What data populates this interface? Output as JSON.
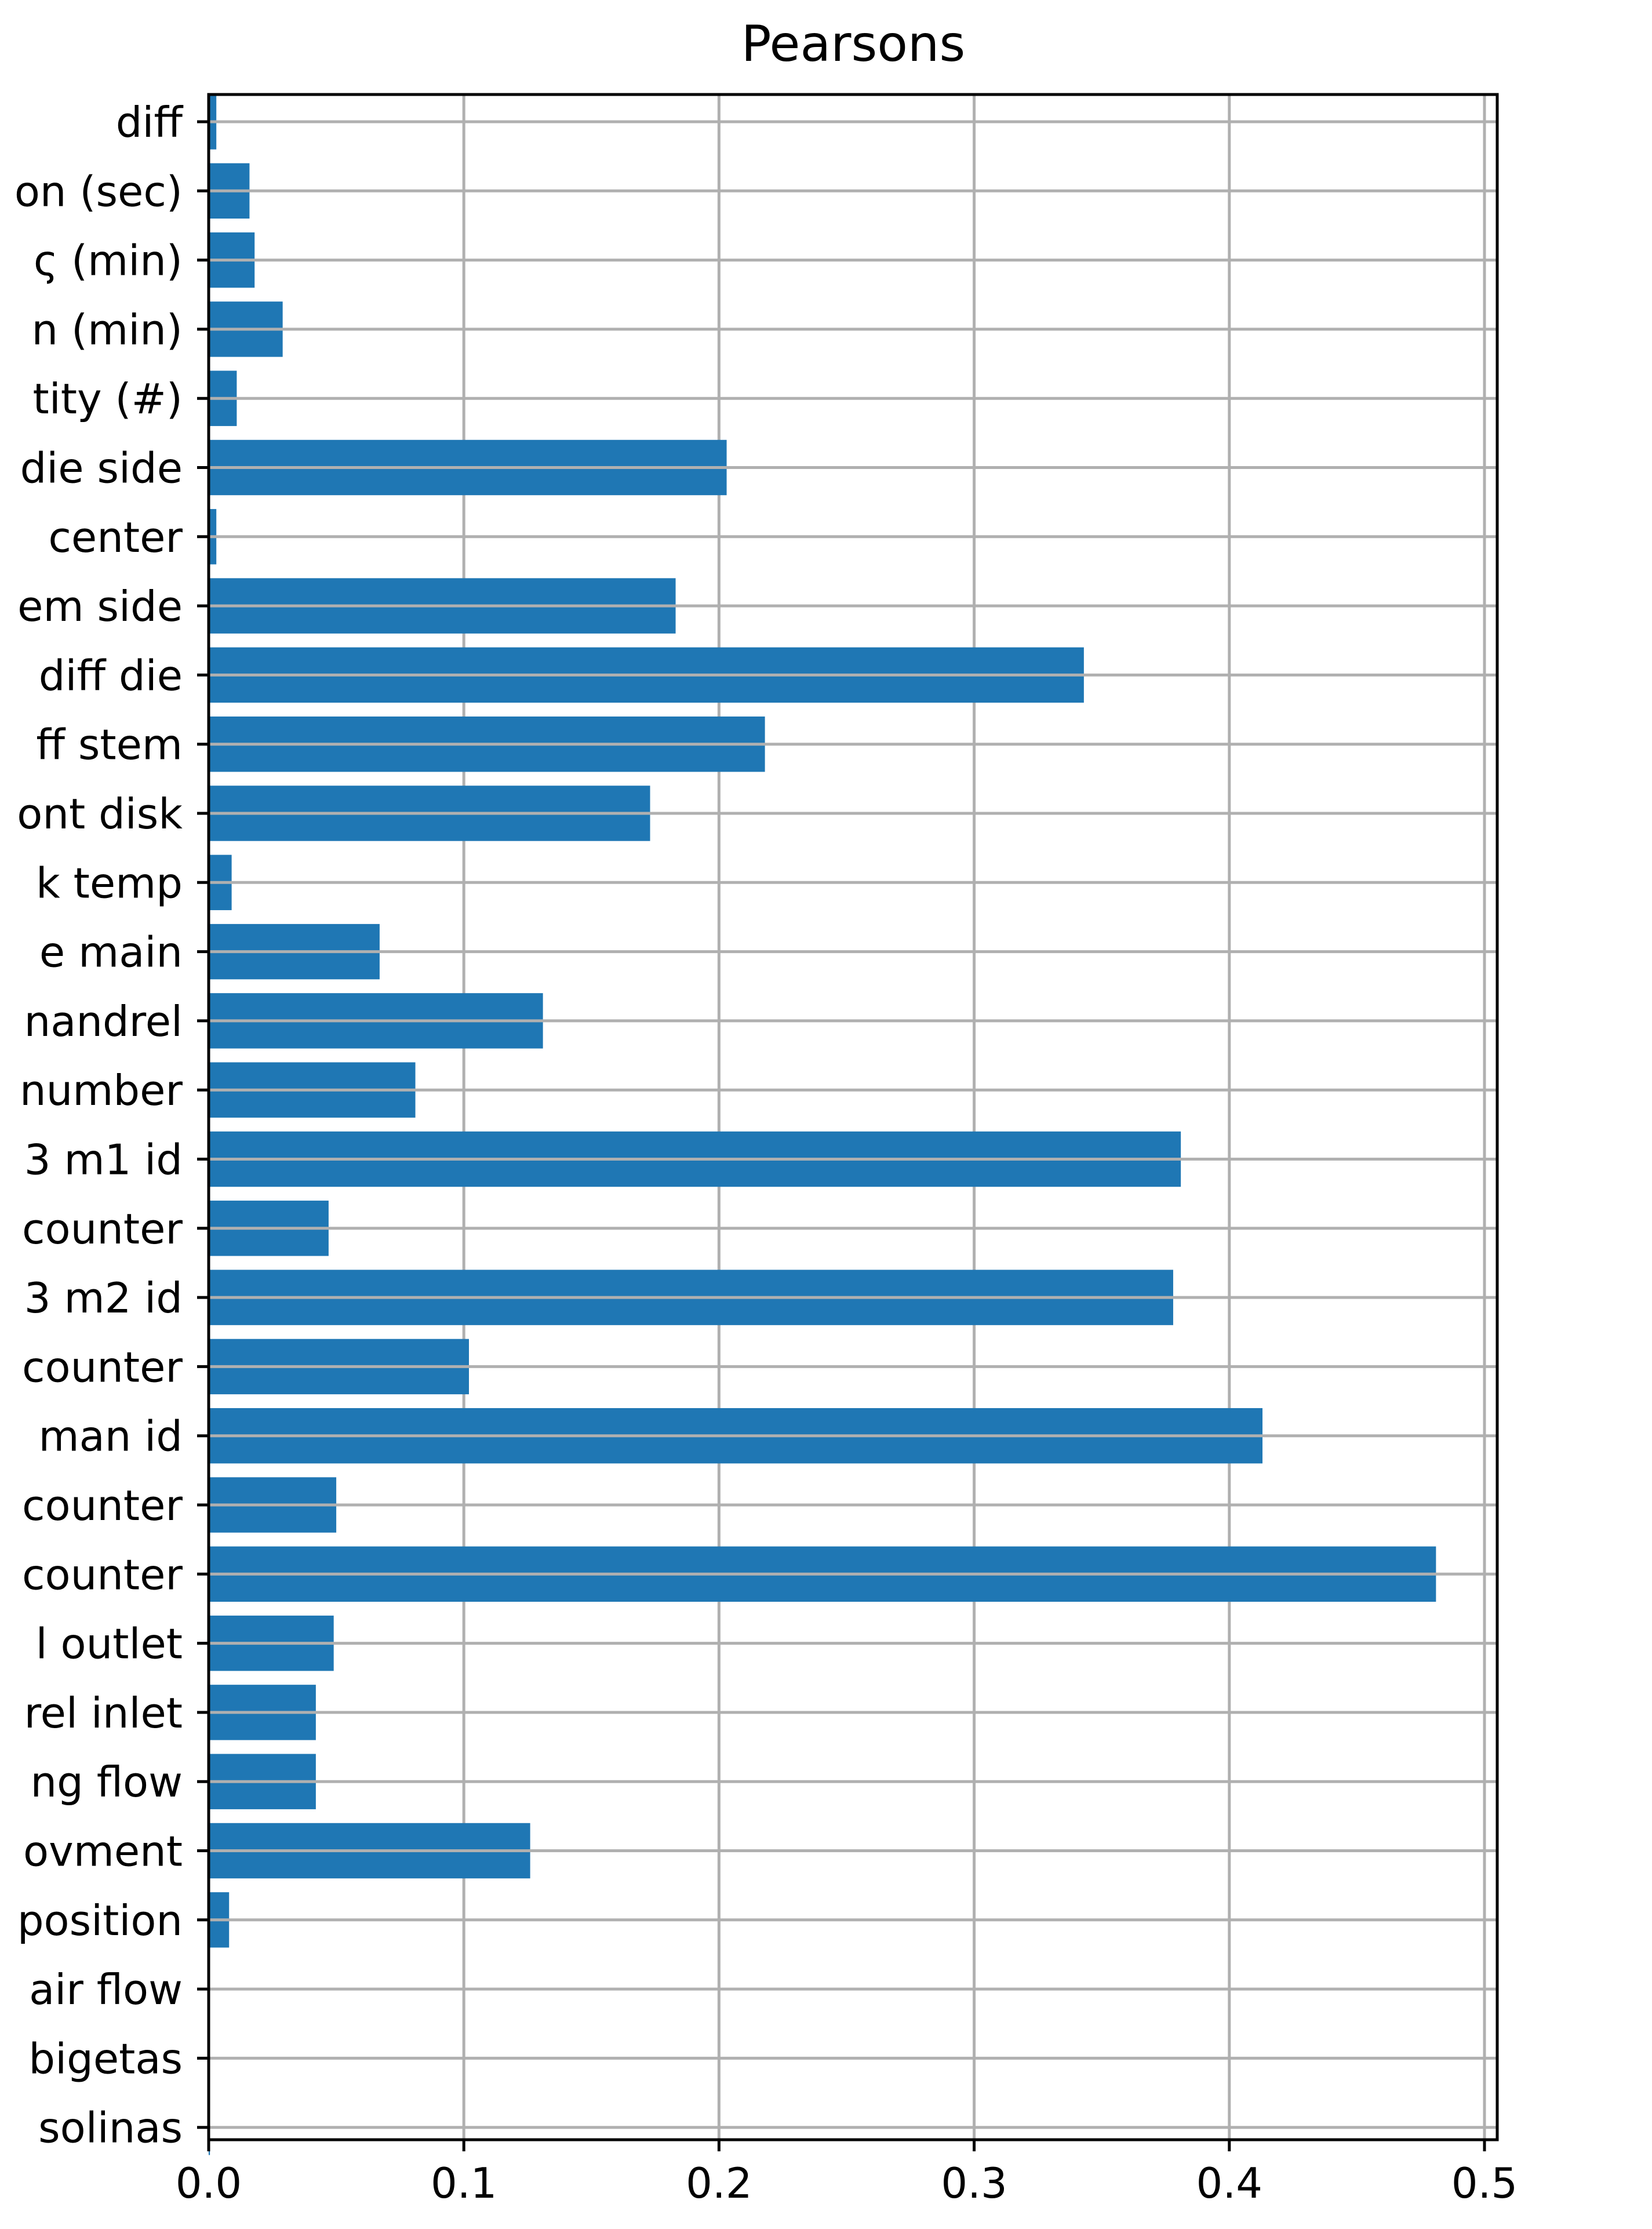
{
  "chart_data": {
    "type": "bar",
    "orientation": "horizontal",
    "title": "Pearsons",
    "xlabel": "",
    "ylabel": "",
    "xlim": [
      0.0,
      0.505
    ],
    "xticks": [
      0.0,
      0.1,
      0.2,
      0.3,
      0.4,
      0.5
    ],
    "xtick_labels": [
      "0.0",
      "0.1",
      "0.2",
      "0.3",
      "0.4",
      "0.5"
    ],
    "grid": true,
    "bar_color": "#1f77b4",
    "categories": [
      "diff",
      "on (sec)",
      "ς (min)",
      "n (min)",
      "tity (#)",
      "die side",
      " center",
      "em side",
      " diff die",
      "ff stem",
      "ont disk",
      "k temp",
      "e main ",
      "nandrel",
      "number",
      "3  m1 id",
      "counter",
      "3  m2 id",
      "counter",
      " man id",
      "counter",
      "counter",
      "l outlet",
      "rel inlet",
      "ng flow",
      "ovment",
      "position",
      "air flow",
      "bigetas",
      " solinas"
    ],
    "values": [
      0.003,
      0.016,
      0.018,
      0.029,
      0.011,
      0.203,
      0.003,
      0.183,
      0.343,
      0.218,
      0.173,
      0.009,
      0.067,
      0.131,
      0.081,
      0.381,
      0.047,
      0.378,
      0.102,
      0.413,
      0.05,
      0.481,
      0.049,
      0.042,
      0.042,
      0.126,
      0.008,
      0.0,
      0.0,
      0.0005
    ]
  }
}
